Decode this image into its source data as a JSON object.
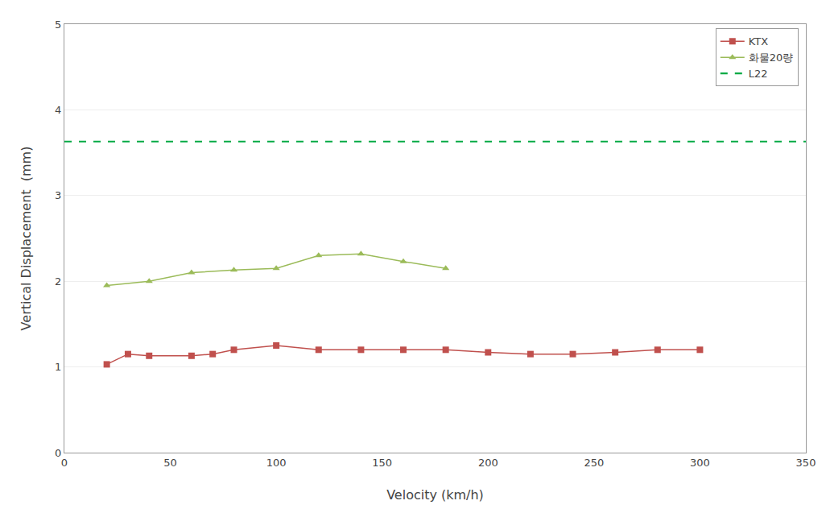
{
  "chart_data": {
    "type": "line",
    "x_label": "Velocity (km/h)",
    "y_label": "Vertical Displacement  (mm)",
    "series": [
      {
        "name": "KTX",
        "color": "#C0504D",
        "marker": "square",
        "x": [
          20,
          30,
          40,
          60,
          70,
          80,
          100,
          120,
          140,
          160,
          180,
          200,
          220,
          240,
          260,
          280,
          300
        ],
        "values": [
          1.03,
          1.15,
          1.13,
          1.13,
          1.15,
          1.2,
          1.25,
          1.2,
          1.2,
          1.2,
          1.2,
          1.17,
          1.15,
          1.15,
          1.17,
          1.2,
          1.2
        ]
      },
      {
        "name": "화물20량",
        "color": "#9BBB59",
        "marker": "triangle-up",
        "x": [
          20,
          40,
          60,
          80,
          100,
          120,
          140,
          160,
          180
        ],
        "values": [
          1.95,
          2.0,
          2.1,
          2.13,
          2.15,
          2.3,
          2.32,
          2.23,
          2.15
        ]
      },
      {
        "name": "L22",
        "color": "#00AA44",
        "type": "hline",
        "line_style": "dash",
        "values": [
          3.63
        ]
      }
    ],
    "xlim": [
      0,
      350
    ],
    "ylim": [
      0,
      5
    ],
    "xticks": [
      0,
      50,
      100,
      150,
      200,
      250,
      300,
      350
    ],
    "yticks": [
      0,
      1,
      2,
      3,
      4,
      5
    ],
    "grid": "y",
    "legend": "upper right"
  }
}
